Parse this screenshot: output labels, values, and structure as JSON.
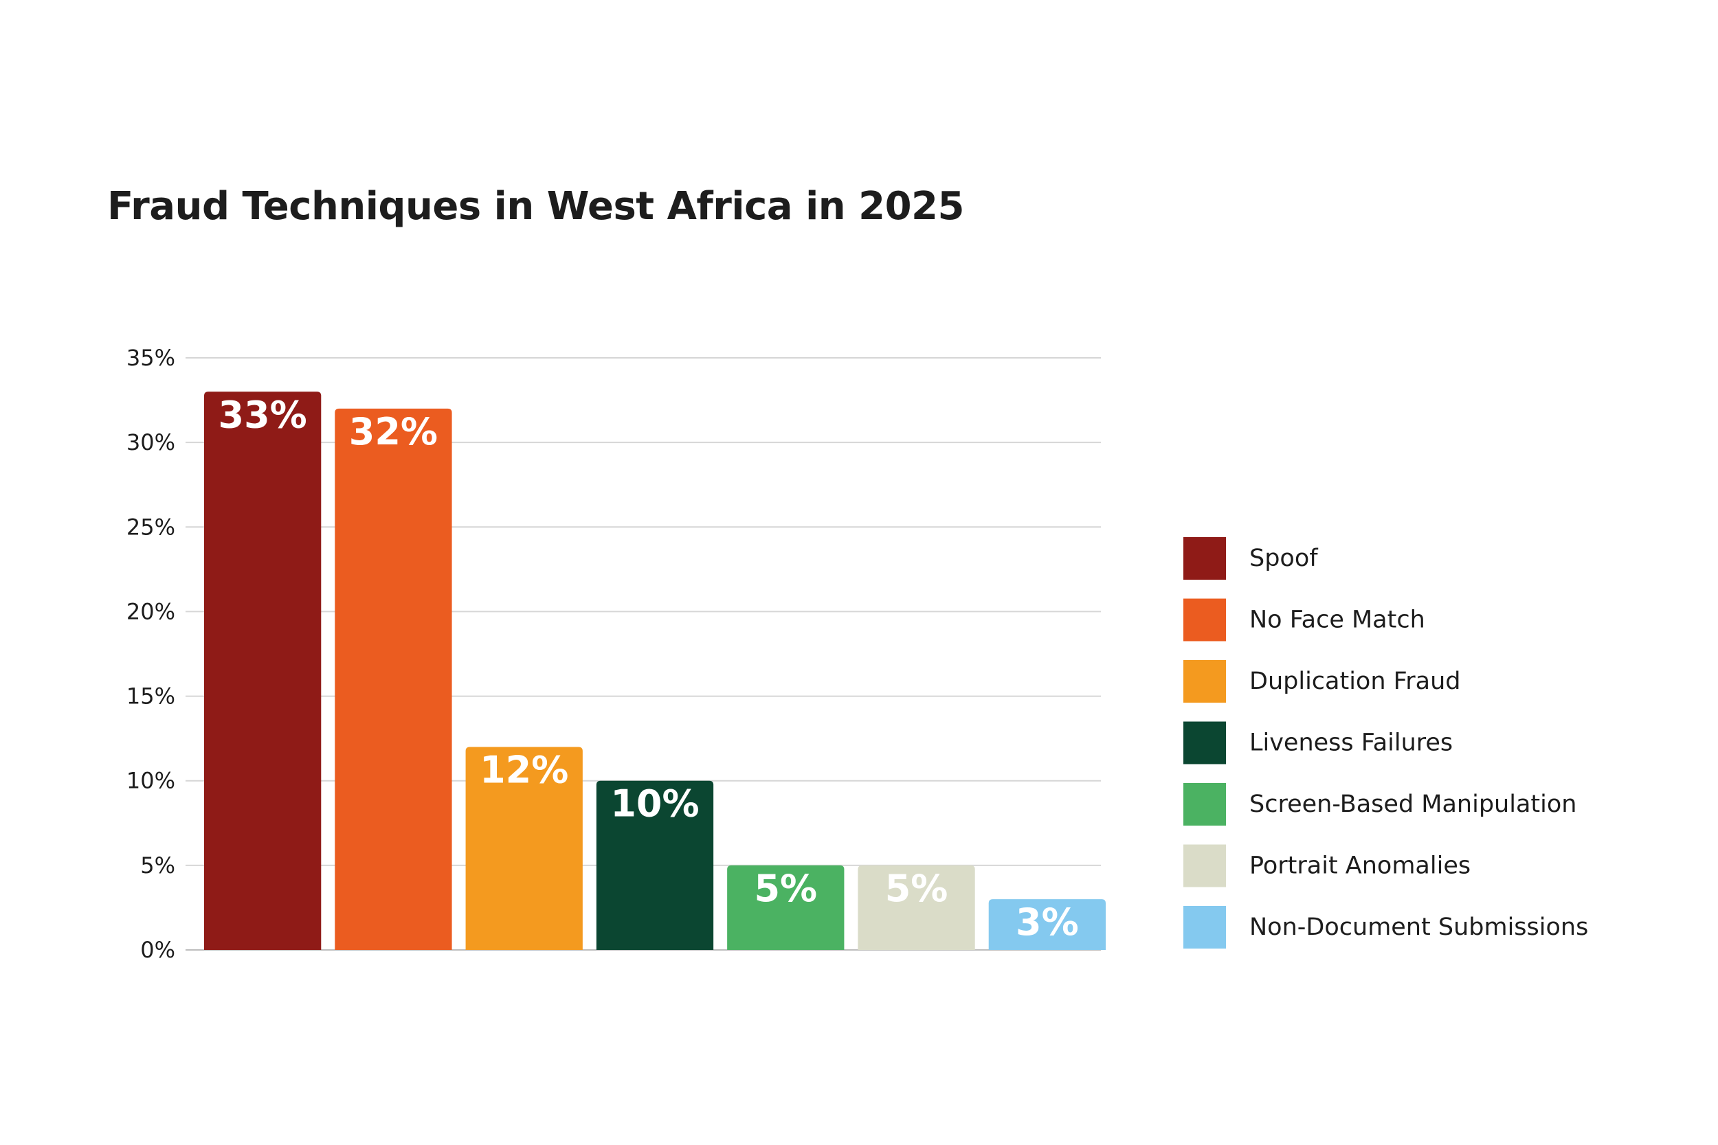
{
  "chart_data": {
    "type": "bar",
    "title": "Fraud Techniques in West Africa in 2025",
    "xlabel": "",
    "ylabel": "",
    "ylim": [
      0,
      35
    ],
    "yticks": [
      "0%",
      "5%",
      "10%",
      "15%",
      "20%",
      "25%",
      "30%",
      "35%"
    ],
    "grid": true,
    "legend_position": "right",
    "categories": [
      "Spoof",
      "No Face Match",
      "Duplication Fraud",
      "Liveness Failures",
      "Screen-Based Manipulation",
      "Portrait Anomalies",
      "Non-Document Submissions"
    ],
    "values": [
      33,
      32,
      12,
      10,
      5,
      5,
      3
    ],
    "data_labels": [
      "33%",
      "32%",
      "12%",
      "10%",
      "5%",
      "5%",
      "3%"
    ],
    "colors": [
      "#8f1b17",
      "#eb5c20",
      "#f49a1f",
      "#0b4631",
      "#4bb262",
      "#dadcc8",
      "#84c9ef"
    ]
  }
}
